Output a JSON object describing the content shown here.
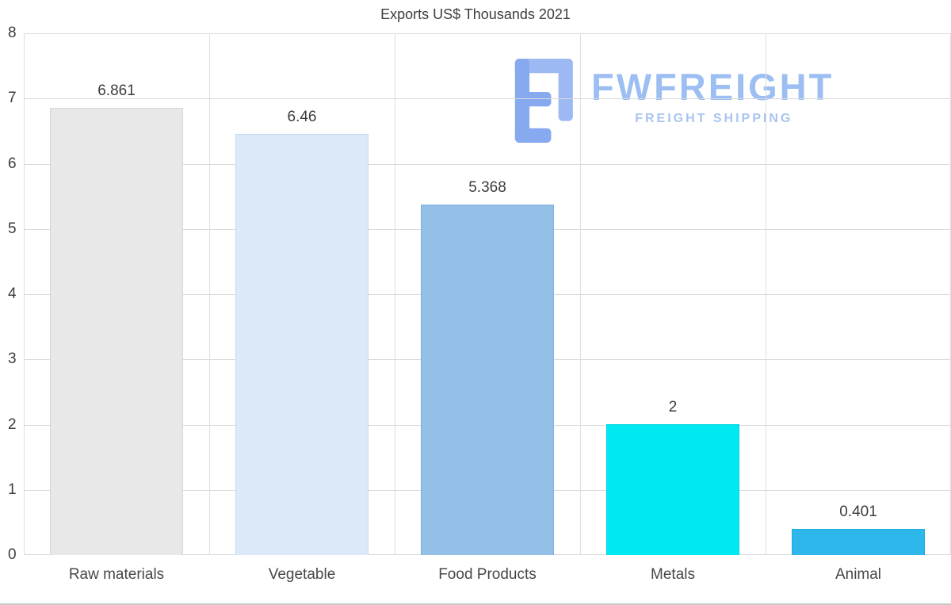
{
  "title": "Exports US$ Thousands 2021",
  "watermark": {
    "brand": "FWFREIGHT",
    "tagline": "FREIGHT SHIPPING",
    "brand_color": "#9cbef2",
    "tagline_color": "#a9c4f0",
    "logo_colors": [
      "#9db9f3",
      "#87a9ef"
    ]
  },
  "chart_data": {
    "type": "bar",
    "title": "Exports US$ Thousands 2021",
    "categories": [
      "Raw materials",
      "Vegetable",
      "Food Products",
      "Metals",
      "Animal"
    ],
    "values": [
      6.861,
      6.46,
      5.368,
      2,
      0.401
    ],
    "value_labels": [
      "6.861",
      "6.46",
      "5.368",
      "2",
      "0.401"
    ],
    "bar_colors": [
      "#e8e8e8",
      "#dbe9f9",
      "#94bfe6",
      "#00e9f2",
      "#2db7ea"
    ],
    "bar_border_colors": [
      "#d6d6d6",
      "#c4dbf3",
      "#7fb0de",
      "#00d2e2",
      "#1fa9dd"
    ],
    "xlabel": "",
    "ylabel": "",
    "ylim": [
      0,
      8
    ],
    "yticks": [
      0,
      1,
      2,
      3,
      4,
      5,
      6,
      7,
      8
    ],
    "grid": true,
    "legend": false,
    "grid_color": "#d9d9d9",
    "text_color": "#3d3d3d"
  }
}
